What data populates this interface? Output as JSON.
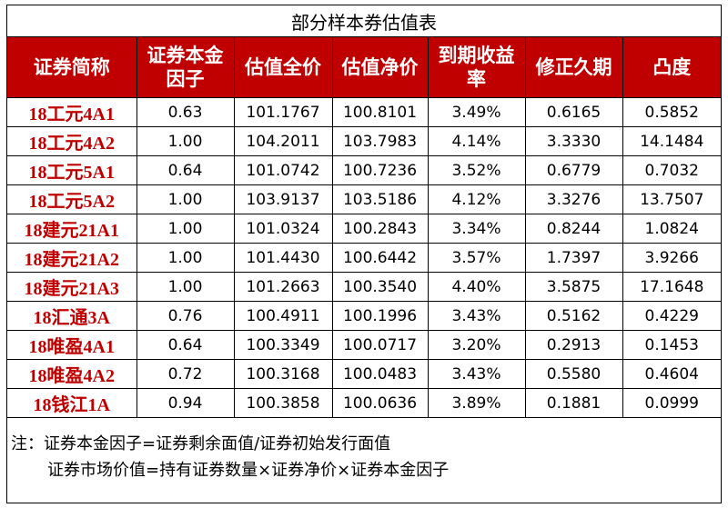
{
  "table": {
    "title": "部分样本券估值表",
    "headers": [
      "证券简称",
      "证券本金因子",
      "估值全价",
      "估值净价",
      "到期收益率",
      "修正久期",
      "凸度"
    ],
    "rows": [
      [
        "18工元4A1",
        "0.63",
        "101.1767",
        "100.8101",
        "3.49%",
        "0.6165",
        "0.5852"
      ],
      [
        "18工元4A2",
        "1.00",
        "104.2011",
        "103.7983",
        "4.14%",
        "3.3330",
        "14.1484"
      ],
      [
        "18工元5A1",
        "0.64",
        "101.0742",
        "100.7236",
        "3.52%",
        "0.6779",
        "0.7032"
      ],
      [
        "18工元5A2",
        "1.00",
        "103.9137",
        "103.5186",
        "4.12%",
        "3.3276",
        "13.7507"
      ],
      [
        "18建元21A1",
        "1.00",
        "101.0324",
        "100.2843",
        "3.34%",
        "0.8244",
        "1.0824"
      ],
      [
        "18建元21A2",
        "1.00",
        "101.4430",
        "100.6442",
        "3.57%",
        "1.7397",
        "3.9266"
      ],
      [
        "18建元21A3",
        "1.00",
        "101.2663",
        "100.3540",
        "4.40%",
        "3.5875",
        "17.1648"
      ],
      [
        "18汇通3A",
        "0.76",
        "100.4911",
        "100.1996",
        "3.43%",
        "0.5162",
        "0.4229"
      ],
      [
        "18唯盈4A1",
        "0.64",
        "100.3349",
        "100.0717",
        "3.20%",
        "0.2913",
        "0.1453"
      ],
      [
        "18唯盈4A2",
        "0.72",
        "100.3168",
        "100.0483",
        "3.43%",
        "0.5580",
        "0.4604"
      ],
      [
        "18钱江1A",
        "0.94",
        "100.3858",
        "100.0636",
        "3.89%",
        "0.1881",
        "0.0999"
      ]
    ],
    "notes": [
      "注：证券本金因子=证券剩余面值/证券初始发行面值",
      "证券市场价值=持有证券数量×证券净价×证券本金因子"
    ]
  }
}
